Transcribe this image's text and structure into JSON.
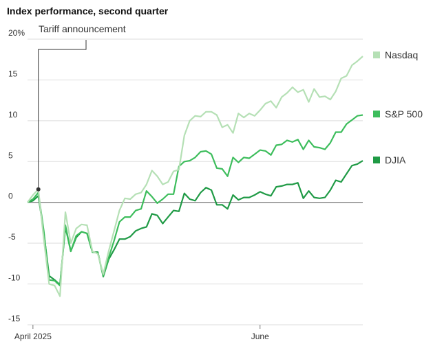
{
  "chart_data": {
    "type": "line",
    "title": "Index performance, second quarter",
    "annotation": "Tariff announcement",
    "categories": [
      null,
      "April 2025",
      null,
      null,
      null,
      null,
      null,
      null,
      null,
      null,
      null,
      null,
      null,
      null,
      null,
      null,
      null,
      null,
      null,
      null,
      null,
      null,
      null,
      null,
      null,
      null,
      null,
      null,
      null,
      null,
      null,
      null,
      null,
      null,
      null,
      null,
      null,
      null,
      null,
      null,
      null,
      null,
      null,
      "June",
      null,
      null,
      null,
      null,
      null,
      null,
      null,
      null,
      null,
      null,
      null,
      null,
      null,
      null,
      null,
      null,
      null,
      null,
      null
    ],
    "ylim": [
      -15,
      20
    ],
    "yticks": [
      -15,
      -10,
      -5,
      0,
      5,
      10,
      15,
      {
        "value": 20,
        "label": "20%"
      }
    ],
    "grid": true,
    "series": [
      {
        "name": "Nasdaq",
        "color": "#b5e0b5",
        "values": [
          0,
          0.9,
          1.6,
          -4.5,
          -10,
          -10.2,
          -11.5,
          -1.2,
          -5,
          -3.2,
          -2.7,
          -2.8,
          -6,
          -6.3,
          -8.8,
          -6,
          -3.5,
          -1,
          0.5,
          0.4,
          1,
          1.2,
          2.2,
          3.9,
          3.2,
          2.2,
          2.5,
          3.8,
          4,
          8.2,
          10,
          10.6,
          10.5,
          11.1,
          11.1,
          10.7,
          9.2,
          9.5,
          8.5,
          10.9,
          10.4,
          10.9,
          10.6,
          11.3,
          12.1,
          12.4,
          11.6,
          12.9,
          13.4,
          14.1,
          13.5,
          13.8,
          12.3,
          13.9,
          12.9,
          13,
          12.6,
          13.6,
          15.2,
          15.5,
          16.8,
          17.3,
          17.9
        ]
      },
      {
        "name": "S&P 500",
        "color": "#3dbd5c",
        "values": [
          0,
          0.4,
          1.2,
          -3.5,
          -9.5,
          -9.6,
          -10.2,
          -2.8,
          -6,
          -4.1,
          -3.6,
          -3.8,
          -6.1,
          -6.2,
          -9,
          -6.8,
          -4.7,
          -2.4,
          -1.8,
          -1.8,
          -1,
          -0.8,
          1.4,
          0.7,
          -0.1,
          0.4,
          1,
          1,
          4.4,
          5,
          5.1,
          5.5,
          6.2,
          6.3,
          5.9,
          4.2,
          4.1,
          3.2,
          5.5,
          4.9,
          5.5,
          5.4,
          5.9,
          6.4,
          6.3,
          5.8,
          7,
          7.1,
          7.6,
          7.4,
          7.7,
          6.5,
          7.6,
          6.8,
          6.7,
          6.5,
          7.3,
          8.6,
          8.6,
          9.6,
          10.1,
          10.6,
          10.7
        ]
      },
      {
        "name": "DJIA",
        "color": "#1f9a45",
        "values": [
          0,
          0.2,
          0.8,
          -3.7,
          -9,
          -9.5,
          -10.1,
          -3,
          -6,
          -4.3,
          -3.6,
          -3.8,
          -6.1,
          -6.1,
          -9.1,
          -7,
          -5.8,
          -4.5,
          -4.5,
          -4.2,
          -3.5,
          -3.2,
          -3,
          -1.4,
          -1.6,
          -2.6,
          -1.8,
          -1,
          -1.1,
          1.1,
          0.4,
          0.2,
          1.2,
          1.8,
          1.5,
          -0.3,
          -0.3,
          -0.8,
          0.9,
          0.3,
          0.6,
          0.6,
          0.9,
          1.3,
          1,
          0.8,
          1.9,
          2,
          2.2,
          2.2,
          2.4,
          0.5,
          1.4,
          0.6,
          0.5,
          0.6,
          1.5,
          2.7,
          2.5,
          3.5,
          4.5,
          4.7,
          5.1
        ]
      }
    ]
  }
}
